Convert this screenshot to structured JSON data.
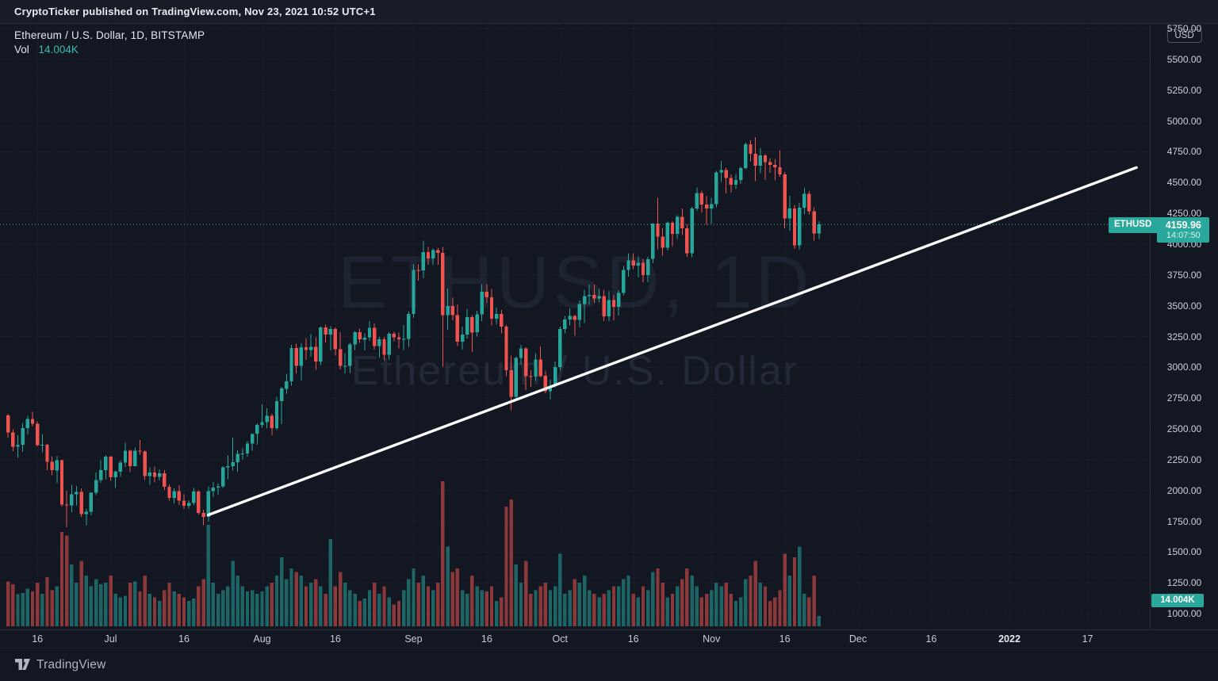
{
  "top_bar": {
    "text": "CryptoTicker published on TradingView.com, Nov 23, 2021 10:52 UTC+1"
  },
  "legend": {
    "symbol_title": "Ethereum / U.S. Dollar, 1D, BITSTAMP",
    "vol_label": "Vol",
    "vol_value": "14.004K"
  },
  "watermark": {
    "line1": "ETHUSD, 1D",
    "line2": "Ethereum / U.S. Dollar"
  },
  "price_axis": {
    "unit_badge": "USD",
    "ticks": [
      "5750.00",
      "5500.00",
      "5250.00",
      "5000.00",
      "4750.00",
      "4500.00",
      "4250.00",
      "4000.00",
      "3750.00",
      "3500.00",
      "3250.00",
      "3000.00",
      "2750.00",
      "2500.00",
      "2250.00",
      "2000.00",
      "1750.00",
      "1500.00",
      "1250.00",
      "1000.00"
    ],
    "price_label": {
      "symbol": "ETHUSD",
      "price": "4159.96",
      "countdown": "14:07:50"
    },
    "volume_label": "14.004K"
  },
  "time_axis": {
    "ticks": [
      {
        "label": "16",
        "date": "2021-06-16"
      },
      {
        "label": "Jul",
        "date": "2021-07-01"
      },
      {
        "label": "16",
        "date": "2021-07-16"
      },
      {
        "label": "Aug",
        "date": "2021-08-01"
      },
      {
        "label": "16",
        "date": "2021-08-16"
      },
      {
        "label": "Sep",
        "date": "2021-09-01"
      },
      {
        "label": "16",
        "date": "2021-09-16"
      },
      {
        "label": "Oct",
        "date": "2021-10-01"
      },
      {
        "label": "16",
        "date": "2021-10-16"
      },
      {
        "label": "Nov",
        "date": "2021-11-01"
      },
      {
        "label": "16",
        "date": "2021-11-16"
      },
      {
        "label": "Dec",
        "date": "2021-12-01"
      },
      {
        "label": "16",
        "date": "2021-12-16"
      },
      {
        "label": "2022",
        "date": "2022-01-01",
        "bold": true
      },
      {
        "label": "17",
        "date": "2022-01-17"
      }
    ]
  },
  "footer": {
    "brand": "TradingView"
  },
  "colors": {
    "background": "#131722",
    "up": "#26a69a",
    "down": "#ef5350",
    "volume_up": "rgba(38,166,154,0.55)",
    "volume_down": "rgba(239,83,80,0.55)",
    "trendline": "#ffffff",
    "price_line": "#32bdae",
    "badge": "#2aa89c",
    "grid": "rgba(125,140,170,0.16)"
  },
  "chart_data": {
    "type": "candlestick_with_volume",
    "title": "Ethereum / U.S. Dollar, 1D, BITSTAMP",
    "symbol": "ETHUSD",
    "interval": "1D",
    "exchange": "BITSTAMP",
    "current_price": 4159.96,
    "current_volume_k": 14.004,
    "price_ylim": [
      872,
      5789
    ],
    "volume_ylim_k": [
      0,
      215
    ],
    "grid": true,
    "start_date": "2021-06-10",
    "candle_fields": [
      "open",
      "high",
      "low",
      "close",
      "volume_kETH"
    ],
    "candles": [
      [
        2609,
        2624,
        2428,
        2472,
        62
      ],
      [
        2472,
        2497,
        2321,
        2354,
        58
      ],
      [
        2354,
        2449,
        2266,
        2370,
        44
      ],
      [
        2370,
        2548,
        2313,
        2508,
        46
      ],
      [
        2508,
        2606,
        2454,
        2580,
        52
      ],
      [
        2580,
        2640,
        2521,
        2543,
        48
      ],
      [
        2543,
        2560,
        2359,
        2367,
        60
      ],
      [
        2367,
        2460,
        2310,
        2373,
        45
      ],
      [
        2373,
        2378,
        2165,
        2233,
        68
      ],
      [
        2233,
        2277,
        2124,
        2164,
        50
      ],
      [
        2164,
        2280,
        2060,
        2245,
        55
      ],
      [
        2245,
        2250,
        1870,
        1886,
        130
      ],
      [
        1886,
        1998,
        1701,
        1879,
        125
      ],
      [
        1879,
        2047,
        1823,
        1968,
        85
      ],
      [
        1968,
        2036,
        1879,
        1989,
        60
      ],
      [
        1989,
        2019,
        1786,
        1809,
        90
      ],
      [
        1809,
        1852,
        1717,
        1829,
        70
      ],
      [
        1829,
        1985,
        1798,
        1981,
        55
      ],
      [
        1981,
        2145,
        1962,
        2084,
        65
      ],
      [
        2084,
        2247,
        2063,
        2166,
        58
      ],
      [
        2166,
        2288,
        2090,
        2275,
        60
      ],
      [
        2275,
        2283,
        2079,
        2108,
        70
      ],
      [
        2108,
        2163,
        2020,
        2152,
        45
      ],
      [
        2152,
        2242,
        2110,
        2227,
        40
      ],
      [
        2227,
        2388,
        2192,
        2322,
        42
      ],
      [
        2322,
        2330,
        2150,
        2198,
        60
      ],
      [
        2198,
        2350,
        2194,
        2322,
        62
      ],
      [
        2322,
        2410,
        2292,
        2316,
        48
      ],
      [
        2316,
        2325,
        2084,
        2117,
        70
      ],
      [
        2117,
        2189,
        2047,
        2146,
        45
      ],
      [
        2146,
        2196,
        2065,
        2111,
        40
      ],
      [
        2111,
        2173,
        2081,
        2140,
        35
      ],
      [
        2140,
        2166,
        2006,
        2031,
        50
      ],
      [
        2031,
        2049,
        1918,
        1941,
        60
      ],
      [
        1941,
        2019,
        1896,
        1995,
        48
      ],
      [
        1995,
        2042,
        1882,
        1919,
        45
      ],
      [
        1919,
        1972,
        1851,
        1877,
        40
      ],
      [
        1877,
        1922,
        1852,
        1900,
        35
      ],
      [
        1900,
        2020,
        1882,
        1993,
        38
      ],
      [
        1993,
        2000,
        1806,
        1818,
        55
      ],
      [
        1818,
        1845,
        1718,
        1786,
        65
      ],
      [
        1786,
        2035,
        1747,
        1996,
        140
      ],
      [
        1996,
        2070,
        1947,
        2023,
        60
      ],
      [
        2023,
        2058,
        1966,
        2034,
        45
      ],
      [
        2034,
        2199,
        2020,
        2189,
        50
      ],
      [
        2189,
        2285,
        2091,
        2197,
        55
      ],
      [
        2197,
        2431,
        2163,
        2231,
        90
      ],
      [
        2231,
        2325,
        2152,
        2299,
        70
      ],
      [
        2299,
        2342,
        2248,
        2300,
        55
      ],
      [
        2300,
        2399,
        2273,
        2382,
        48
      ],
      [
        2382,
        2466,
        2322,
        2460,
        50
      ],
      [
        2460,
        2545,
        2370,
        2531,
        45
      ],
      [
        2531,
        2699,
        2510,
        2556,
        48
      ],
      [
        2556,
        2666,
        2508,
        2608,
        55
      ],
      [
        2608,
        2624,
        2449,
        2506,
        60
      ],
      [
        2506,
        2760,
        2490,
        2725,
        70
      ],
      [
        2725,
        2840,
        2538,
        2827,
        95
      ],
      [
        2827,
        2946,
        2782,
        2888,
        65
      ],
      [
        2888,
        3182,
        2852,
        3158,
        80
      ],
      [
        3158,
        3192,
        2952,
        3012,
        75
      ],
      [
        3012,
        3194,
        2892,
        3163,
        70
      ],
      [
        3163,
        3238,
        3060,
        3141,
        55
      ],
      [
        3141,
        3274,
        3086,
        3166,
        60
      ],
      [
        3166,
        3245,
        2980,
        3048,
        65
      ],
      [
        3048,
        3332,
        3019,
        3323,
        55
      ],
      [
        3323,
        3346,
        3203,
        3265,
        45
      ],
      [
        3265,
        3334,
        3136,
        3310,
        120
      ],
      [
        3310,
        3324,
        3094,
        3148,
        55
      ],
      [
        3148,
        3286,
        2984,
        3011,
        75
      ],
      [
        3011,
        3116,
        2950,
        3013,
        60
      ],
      [
        3013,
        3200,
        2954,
        3185,
        50
      ],
      [
        3185,
        3296,
        3142,
        3286,
        45
      ],
      [
        3286,
        3316,
        3200,
        3226,
        35
      ],
      [
        3226,
        3276,
        3136,
        3242,
        38
      ],
      [
        3242,
        3374,
        3216,
        3320,
        50
      ],
      [
        3320,
        3357,
        3145,
        3172,
        60
      ],
      [
        3172,
        3247,
        3080,
        3228,
        45
      ],
      [
        3228,
        3248,
        3057,
        3101,
        55
      ],
      [
        3101,
        3286,
        3062,
        3273,
        40
      ],
      [
        3273,
        3288,
        3212,
        3244,
        30
      ],
      [
        3244,
        3282,
        3152,
        3227,
        35
      ],
      [
        3227,
        3344,
        3142,
        3231,
        50
      ],
      [
        3231,
        3453,
        3167,
        3433,
        65
      ],
      [
        3433,
        3836,
        3400,
        3790,
        80
      ],
      [
        3790,
        3840,
        3703,
        3788,
        60
      ],
      [
        3788,
        4028,
        3723,
        3936,
        70
      ],
      [
        3936,
        3978,
        3832,
        3884,
        55
      ],
      [
        3884,
        3968,
        3833,
        3952,
        50
      ],
      [
        3952,
        3970,
        3834,
        3928,
        60
      ],
      [
        3928,
        3976,
        3005,
        3425,
        200
      ],
      [
        3425,
        3640,
        3306,
        3498,
        110
      ],
      [
        3498,
        3564,
        3383,
        3424,
        75
      ],
      [
        3424,
        3512,
        3172,
        3209,
        80
      ],
      [
        3209,
        3330,
        3144,
        3267,
        50
      ],
      [
        3267,
        3476,
        3235,
        3408,
        45
      ],
      [
        3408,
        3425,
        3123,
        3284,
        70
      ],
      [
        3284,
        3459,
        3249,
        3429,
        55
      ],
      [
        3429,
        3676,
        3374,
        3614,
        50
      ],
      [
        3614,
        3675,
        3521,
        3569,
        48
      ],
      [
        3569,
        3636,
        3339,
        3396,
        55
      ],
      [
        3396,
        3486,
        3347,
        3435,
        35
      ],
      [
        3435,
        3467,
        3277,
        3330,
        40
      ],
      [
        3330,
        3342,
        2928,
        2976,
        165
      ],
      [
        2976,
        3094,
        2652,
        2760,
        175
      ],
      [
        2760,
        3089,
        2733,
        3076,
        85
      ],
      [
        3076,
        3184,
        3024,
        3155,
        60
      ],
      [
        3155,
        3163,
        2817,
        2928,
        90
      ],
      [
        2928,
        2975,
        2842,
        2925,
        45
      ],
      [
        2925,
        3116,
        2891,
        3063,
        50
      ],
      [
        3063,
        3171,
        2920,
        2930,
        55
      ],
      [
        2930,
        2973,
        2790,
        2806,
        60
      ],
      [
        2806,
        2898,
        2742,
        2852,
        50
      ],
      [
        2852,
        3048,
        2835,
        3001,
        55
      ],
      [
        3001,
        3329,
        2976,
        3310,
        100
      ],
      [
        3310,
        3417,
        3277,
        3390,
        45
      ],
      [
        3390,
        3480,
        3340,
        3418,
        50
      ],
      [
        3418,
        3427,
        3255,
        3384,
        65
      ],
      [
        3384,
        3543,
        3325,
        3515,
        60
      ],
      [
        3515,
        3630,
        3360,
        3577,
        70
      ],
      [
        3577,
        3672,
        3508,
        3588,
        50
      ],
      [
        3588,
        3671,
        3524,
        3559,
        45
      ],
      [
        3559,
        3636,
        3527,
        3577,
        40
      ],
      [
        3577,
        3629,
        3374,
        3415,
        45
      ],
      [
        3415,
        3620,
        3376,
        3545,
        50
      ],
      [
        3545,
        3588,
        3383,
        3492,
        55
      ],
      [
        3492,
        3626,
        3421,
        3605,
        55
      ],
      [
        3605,
        3822,
        3584,
        3790,
        65
      ],
      [
        3790,
        3925,
        3737,
        3869,
        70
      ],
      [
        3869,
        3925,
        3798,
        3827,
        45
      ],
      [
        3827,
        3900,
        3728,
        3850,
        40
      ],
      [
        3850,
        3880,
        3692,
        3748,
        55
      ],
      [
        3748,
        3898,
        3690,
        3879,
        50
      ],
      [
        3879,
        4171,
        3845,
        4167,
        75
      ],
      [
        4167,
        4375,
        3959,
        4060,
        80
      ],
      [
        4060,
        4132,
        3905,
        3972,
        60
      ],
      [
        3972,
        4182,
        3947,
        4172,
        40
      ],
      [
        4172,
        4188,
        3984,
        4083,
        45
      ],
      [
        4083,
        4238,
        4043,
        4221,
        55
      ],
      [
        4221,
        4288,
        4075,
        4129,
        65
      ],
      [
        4129,
        4161,
        3896,
        3926,
        80
      ],
      [
        3926,
        4302,
        3894,
        4288,
        70
      ],
      [
        4288,
        4459,
        4269,
        4414,
        55
      ],
      [
        4414,
        4434,
        4256,
        4322,
        40
      ],
      [
        4322,
        4393,
        4156,
        4288,
        45
      ],
      [
        4288,
        4375,
        4166,
        4324,
        50
      ],
      [
        4324,
        4596,
        4300,
        4583,
        60
      ],
      [
        4583,
        4674,
        4505,
        4601,
        55
      ],
      [
        4601,
        4622,
        4413,
        4536,
        60
      ],
      [
        4536,
        4565,
        4417,
        4481,
        45
      ],
      [
        4481,
        4568,
        4447,
        4521,
        35
      ],
      [
        4521,
        4630,
        4489,
        4617,
        40
      ],
      [
        4617,
        4824,
        4609,
        4810,
        65
      ],
      [
        4810,
        4842,
        4673,
        4732,
        70
      ],
      [
        4732,
        4868,
        4512,
        4637,
        90
      ],
      [
        4637,
        4778,
        4576,
        4720,
        60
      ],
      [
        4720,
        4729,
        4520,
        4666,
        55
      ],
      [
        4666,
        4698,
        4578,
        4644,
        35
      ],
      [
        4644,
        4689,
        4517,
        4623,
        40
      ],
      [
        4623,
        4764,
        4546,
        4567,
        50
      ],
      [
        4567,
        4586,
        4129,
        4210,
        100
      ],
      [
        4210,
        4392,
        4110,
        4290,
        70
      ],
      [
        4290,
        4317,
        3960,
        3990,
        95
      ],
      [
        3990,
        4337,
        3955,
        4296,
        110
      ],
      [
        4296,
        4458,
        4243,
        4409,
        45
      ],
      [
        4409,
        4432,
        4240,
        4268,
        40
      ],
      [
        4268,
        4298,
        4028,
        4087,
        70
      ],
      [
        4087,
        4187,
        4043,
        4160,
        14
      ]
    ],
    "trendline": {
      "from": {
        "date": "2021-07-21",
        "price": 1802
      },
      "to": {
        "date": "2022-01-27",
        "price": 4622
      }
    }
  }
}
